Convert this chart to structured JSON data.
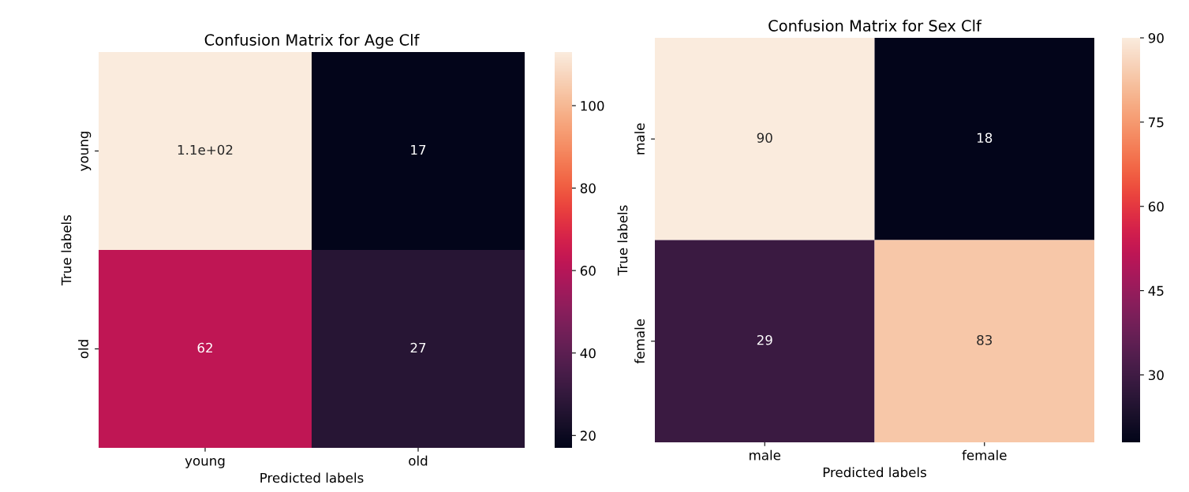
{
  "chart_data": [
    {
      "type": "heatmap",
      "title": "Confusion Matrix for Age Clf",
      "xlabel": "Predicted labels",
      "ylabel": "True labels",
      "categories": [
        "young",
        "old"
      ],
      "y_categories": [
        "young",
        "old"
      ],
      "cells": [
        [
          113,
          17
        ],
        [
          62,
          27
        ]
      ],
      "cell_labels": [
        [
          "1.1e+02",
          "17"
        ],
        [
          "62",
          "27"
        ]
      ],
      "clim": [
        17,
        113
      ],
      "cticks": [
        20,
        40,
        60,
        80,
        100
      ]
    },
    {
      "type": "heatmap",
      "title": "Confusion Matrix for Sex Clf",
      "xlabel": "Predicted labels",
      "ylabel": "True labels",
      "categories": [
        "male",
        "female"
      ],
      "y_categories": [
        "male",
        "female"
      ],
      "cells": [
        [
          90,
          18
        ],
        [
          29,
          83
        ]
      ],
      "cell_labels": [
        [
          "90",
          "18"
        ],
        [
          "29",
          "83"
        ]
      ],
      "clim": [
        18,
        90
      ],
      "cticks": [
        30,
        45,
        60,
        75,
        90
      ]
    }
  ]
}
